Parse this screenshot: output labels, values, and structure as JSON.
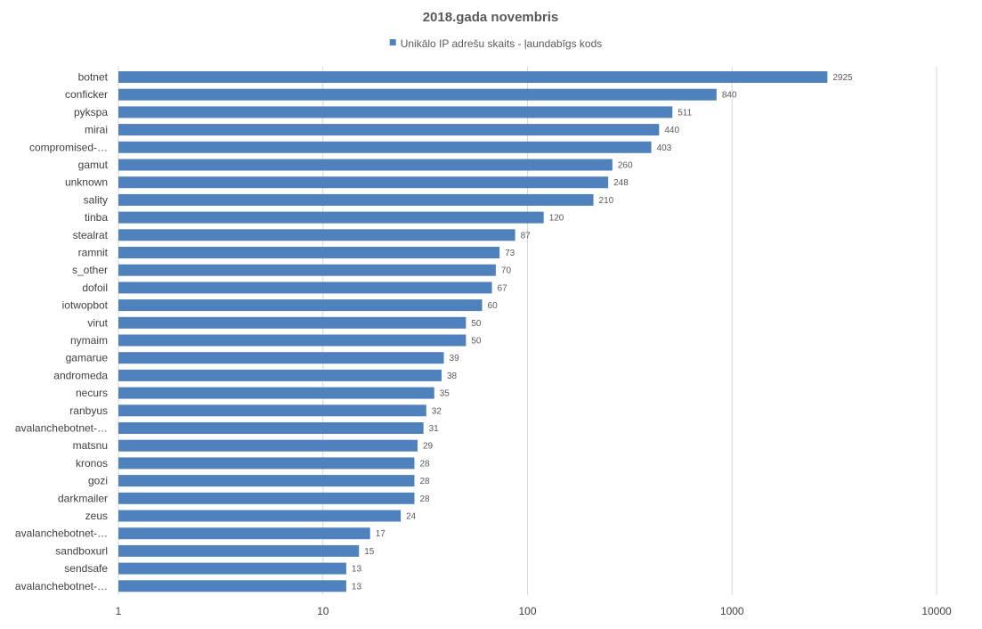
{
  "chart_data": {
    "type": "bar",
    "orientation": "horizontal",
    "title": "2018.gada novembris",
    "legend": {
      "position": "top",
      "label": "Unikālo IP adrešu skaits -  ļaundabīgs kods"
    },
    "x_scale": "log",
    "xlim": [
      1,
      10000
    ],
    "x_ticks": [
      "1",
      "10",
      "100",
      "1000",
      "10000"
    ],
    "grid": true,
    "bar_color": "#4f81bd",
    "categories": [
      "botnet",
      "conficker",
      "pykspa",
      "mirai",
      "compromised-…",
      "gamut",
      "unknown",
      "sality",
      "tinba",
      "stealrat",
      "ramnit",
      "s_other",
      "dofoil",
      "iotwopbot",
      "virut",
      "nymaim",
      "gamarue",
      "andromeda",
      "necurs",
      "ranbyus",
      "avalanchebotnet-…",
      "matsnu",
      "kronos",
      "gozi",
      "darkmailer",
      "zeus",
      "avalanchebotnet-…",
      "sandboxurl",
      "sendsafe",
      "avalanchebotnet-…"
    ],
    "series": [
      {
        "name": "Unikālo IP adrešu skaits -  ļaundabīgs kods",
        "values": [
          2925,
          840,
          511,
          440,
          403,
          260,
          248,
          210,
          120,
          87,
          73,
          70,
          67,
          60,
          50,
          50,
          39,
          38,
          35,
          32,
          31,
          29,
          28,
          28,
          28,
          24,
          17,
          15,
          13,
          13
        ]
      }
    ]
  }
}
